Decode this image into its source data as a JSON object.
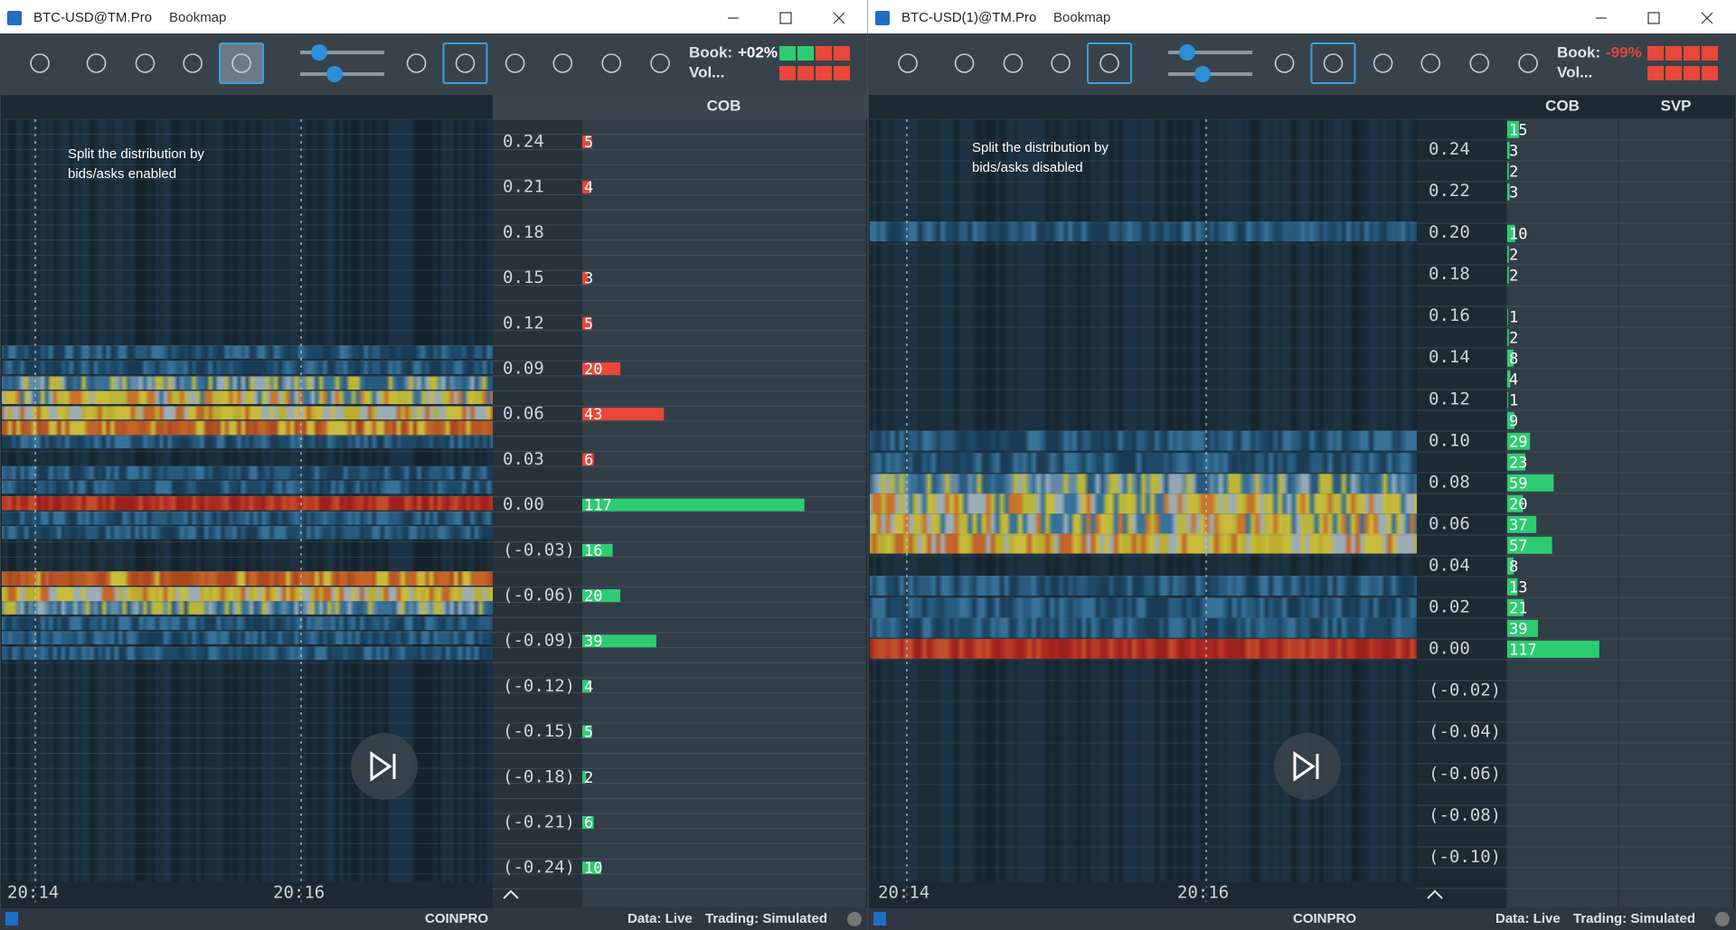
{
  "windows": [
    {
      "title": "BTC-USD@TM.Pro",
      "app": "Bookmap",
      "book_label": "Book:",
      "book_value": "+02%",
      "book_value_color": "#ffffff",
      "vol_label": "Vol...",
      "column_headers": [
        "COB"
      ],
      "annotation": [
        "Split the distribution by",
        "bids/asks enabled"
      ],
      "price_labels": [
        "0.24",
        "0.21",
        "0.18",
        "0.15",
        "0.12",
        "0.09",
        "0.06",
        "0.03",
        "0.00",
        "(-0.03)",
        "(-0.06)",
        "(-0.09)",
        "(-0.12)",
        "(-0.15)",
        "(-0.18)",
        "(-0.21)",
        "(-0.24)"
      ],
      "cob_asks": [
        5,
        4,
        null,
        3,
        5,
        20,
        43,
        6,
        null,
        null,
        null,
        null,
        null,
        null,
        null,
        null,
        null
      ],
      "cob_bids": [
        null,
        null,
        null,
        null,
        null,
        null,
        null,
        null,
        117,
        16,
        20,
        39,
        4,
        5,
        2,
        6,
        10
      ],
      "ask_color": "#e8473a",
      "bid_color": "#2ecc71",
      "times": [
        "20:14",
        "20:16"
      ],
      "status": {
        "exchange": "COINPRO",
        "data": "Data: Live",
        "trading": "Trading: Simulated"
      }
    },
    {
      "title": "BTC-USD(1)@TM.Pro",
      "app": "Bookmap",
      "book_label": "Book:",
      "book_value": "-99%",
      "book_value_color": "#e8473a",
      "vol_label": "Vol...",
      "column_headers": [
        "COB",
        "SVP"
      ],
      "annotation": [
        "Split the distribution by",
        "bids/asks disabled"
      ],
      "price_labels": [
        "0.24",
        "0.22",
        "0.20",
        "0.18",
        "0.16",
        "0.14",
        "0.12",
        "0.10",
        "0.08",
        "0.06",
        "0.04",
        "0.02",
        "0.00",
        "(-0.02)",
        "(-0.04)",
        "(-0.06)",
        "(-0.08)",
        "(-0.10)"
      ],
      "cob_bids": [
        15,
        3,
        2,
        3,
        null,
        10,
        2,
        2,
        null,
        1,
        2,
        8,
        4,
        1,
        9,
        29,
        23,
        59,
        20,
        37,
        57,
        8,
        13,
        21,
        39,
        117
      ],
      "bid_color": "#2ecc71",
      "times": [
        "20:14",
        "20:16"
      ],
      "status": {
        "exchange": "COINPRO",
        "data": "Data: Live",
        "trading": "Trading: Simulated"
      }
    }
  ]
}
